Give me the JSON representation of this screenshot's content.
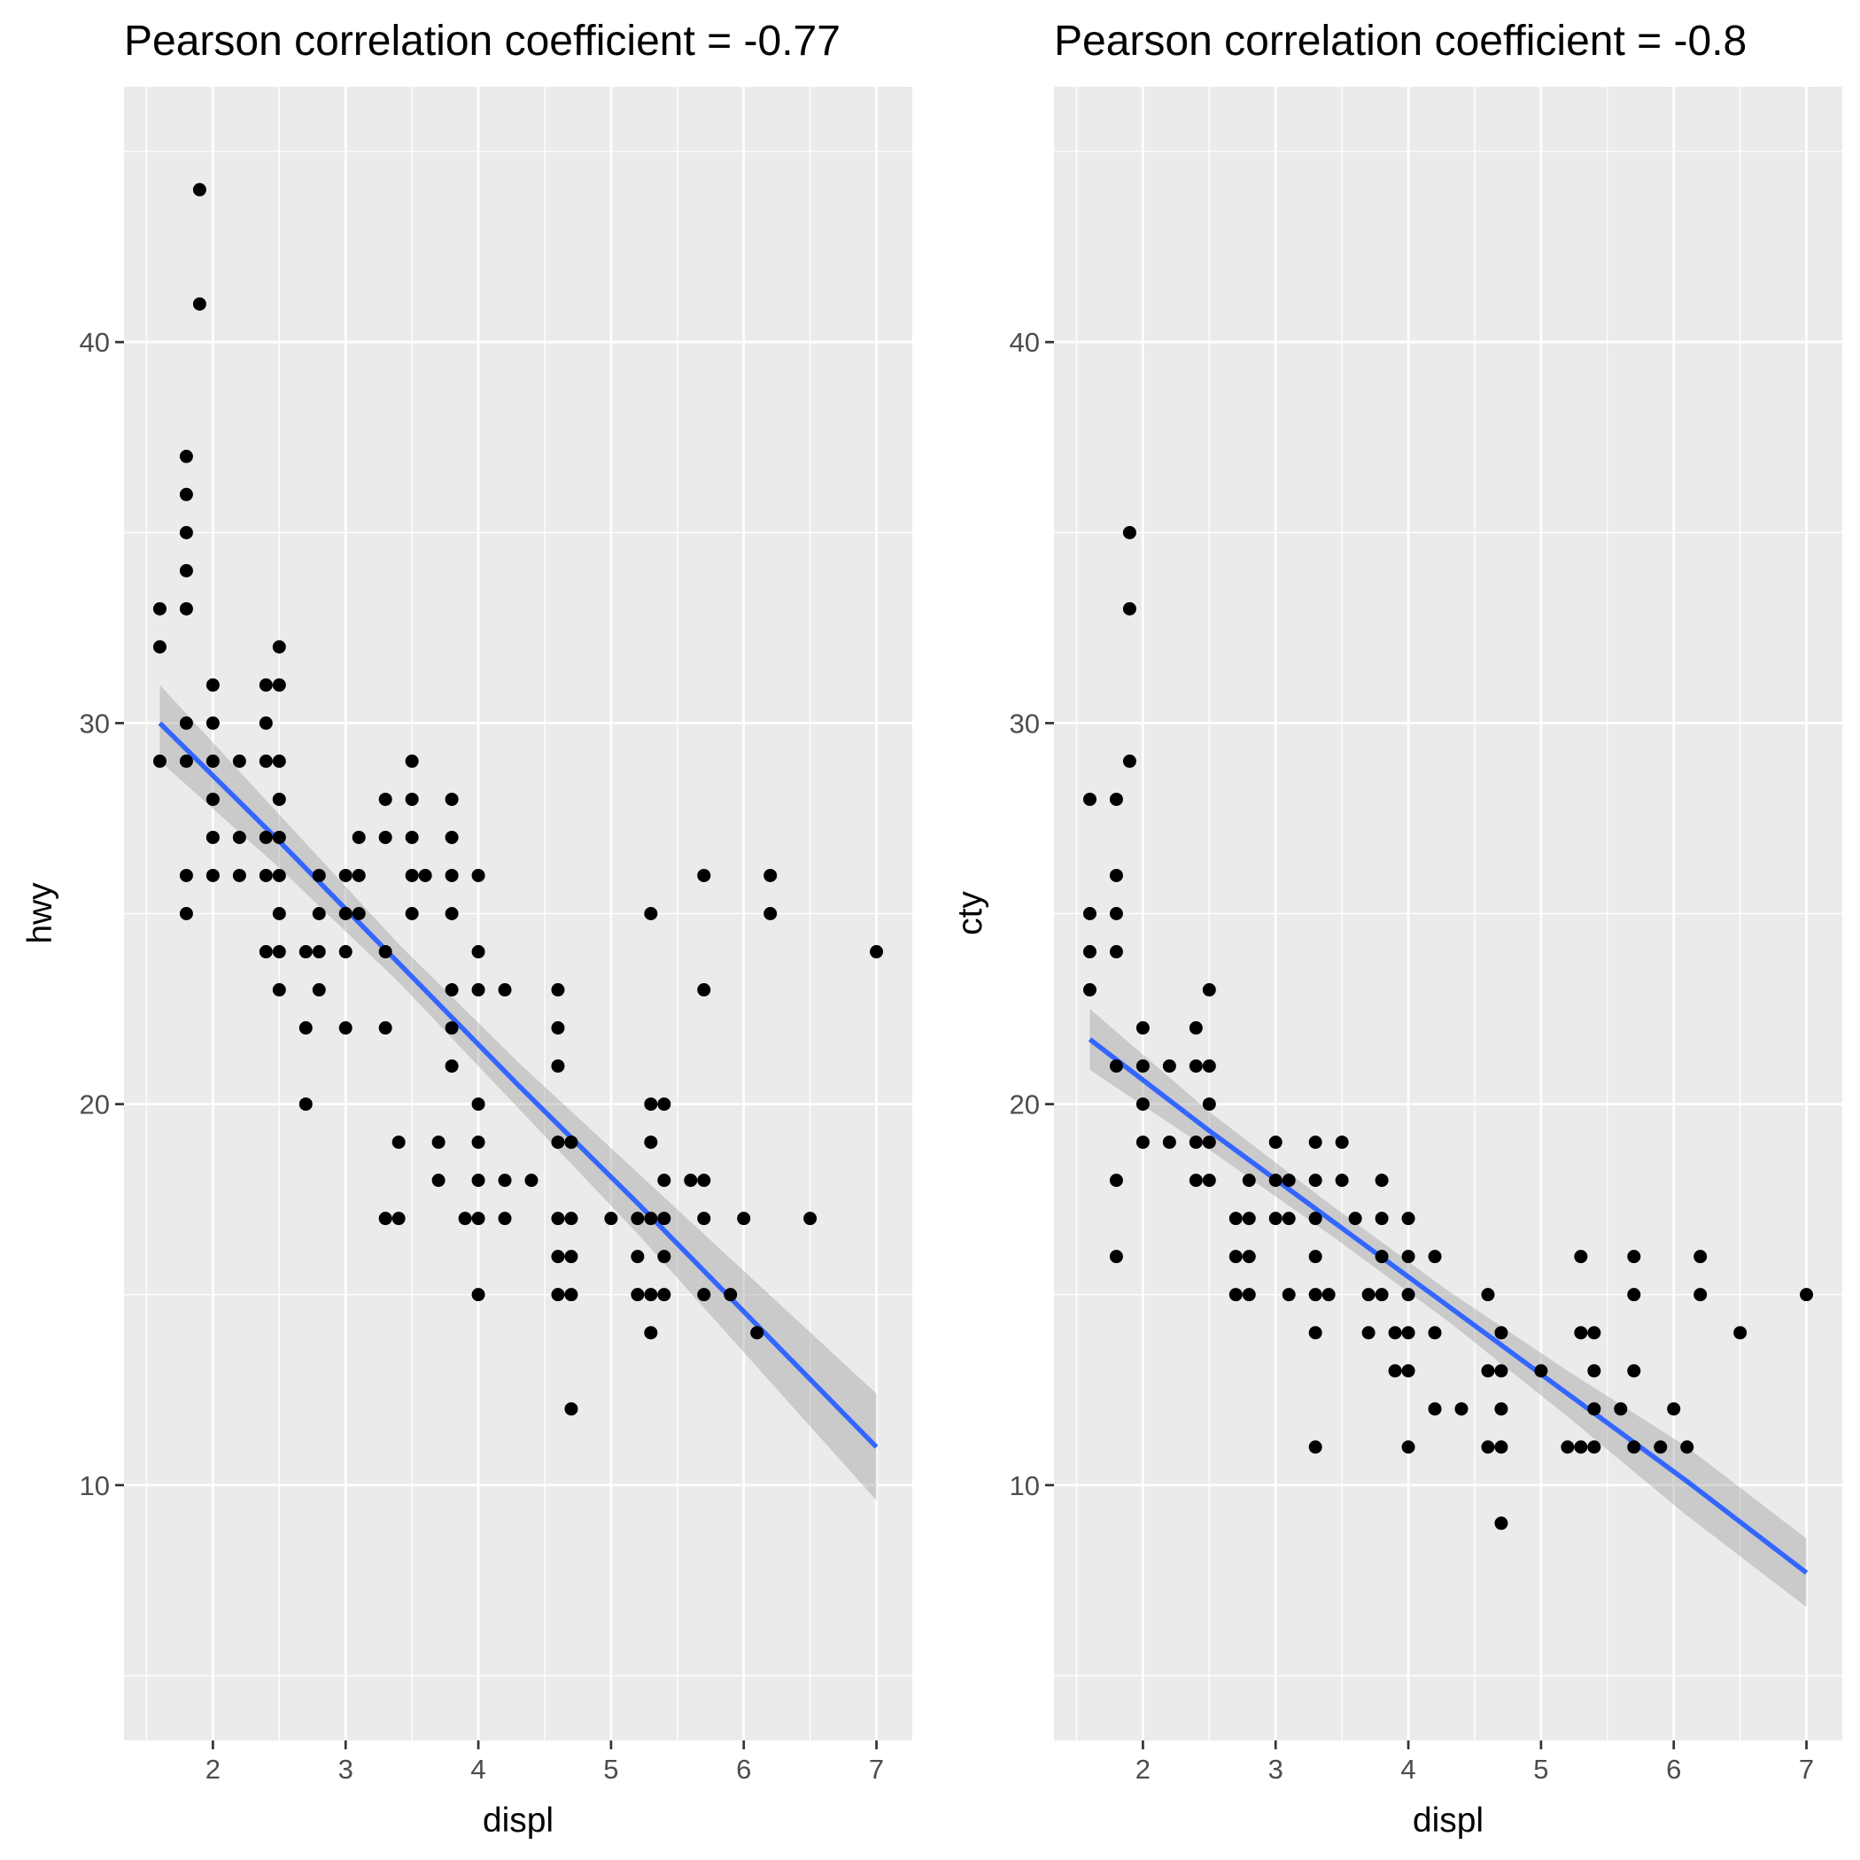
{
  "chart_data": [
    {
      "type": "scatter",
      "title": "Pearson correlation coefficient = -0.77",
      "xlabel": "displ",
      "ylabel": "hwy",
      "xlim": [
        1.33,
        7.27
      ],
      "ylim": [
        3.3,
        46.7
      ],
      "x_ticks": [
        2,
        3,
        4,
        5,
        6,
        7
      ],
      "y_ticks": [
        10,
        20,
        30,
        40
      ],
      "x_tick_labels": [
        "2",
        "3",
        "4",
        "5",
        "6",
        "7"
      ],
      "y_tick_labels": [
        "10",
        "20",
        "30",
        "40"
      ],
      "grid": true,
      "colors": {
        "points": "#000000",
        "fit_line": "#3366ff",
        "ribbon": "#999999",
        "panel": "#ebebeb"
      },
      "fit": {
        "x": [
          1.6,
          2.5,
          3.4,
          4.3,
          5.2,
          6.1,
          7.0
        ],
        "y": [
          30.0,
          26.9,
          23.7,
          20.5,
          17.4,
          14.2,
          11.0
        ],
        "lower": [
          29.0,
          26.2,
          23.2,
          19.9,
          16.6,
          13.1,
          9.6
        ],
        "upper": [
          31.0,
          27.6,
          24.2,
          21.1,
          18.2,
          15.3,
          12.4
        ]
      },
      "points": [
        [
          1.9,
          44
        ],
        [
          1.9,
          41
        ],
        [
          1.8,
          37
        ],
        [
          1.8,
          36
        ],
        [
          1.8,
          35
        ],
        [
          1.8,
          34
        ],
        [
          1.8,
          33
        ],
        [
          1.6,
          33
        ],
        [
          1.6,
          32
        ],
        [
          1.6,
          29
        ],
        [
          1.8,
          30
        ],
        [
          1.8,
          29
        ],
        [
          1.8,
          26
        ],
        [
          1.8,
          25
        ],
        [
          2.0,
          31
        ],
        [
          2.0,
          30
        ],
        [
          2.0,
          29
        ],
        [
          2.0,
          28
        ],
        [
          2.0,
          27
        ],
        [
          2.0,
          26
        ],
        [
          2.2,
          29
        ],
        [
          2.2,
          27
        ],
        [
          2.2,
          26
        ],
        [
          2.4,
          31
        ],
        [
          2.4,
          30
        ],
        [
          2.4,
          29
        ],
        [
          2.4,
          27
        ],
        [
          2.4,
          26
        ],
        [
          2.4,
          24
        ],
        [
          2.5,
          32
        ],
        [
          2.5,
          31
        ],
        [
          2.5,
          29
        ],
        [
          2.5,
          28
        ],
        [
          2.5,
          27
        ],
        [
          2.5,
          26
        ],
        [
          2.5,
          25
        ],
        [
          2.5,
          24
        ],
        [
          2.5,
          23
        ],
        [
          2.7,
          24
        ],
        [
          2.7,
          22
        ],
        [
          2.7,
          20
        ],
        [
          2.8,
          26
        ],
        [
          2.8,
          25
        ],
        [
          2.8,
          24
        ],
        [
          2.8,
          23
        ],
        [
          3.0,
          26
        ],
        [
          3.0,
          25
        ],
        [
          3.0,
          24
        ],
        [
          3.0,
          22
        ],
        [
          3.1,
          27
        ],
        [
          3.1,
          26
        ],
        [
          3.1,
          25
        ],
        [
          3.3,
          28
        ],
        [
          3.3,
          27
        ],
        [
          3.3,
          24
        ],
        [
          3.3,
          22
        ],
        [
          3.3,
          17
        ],
        [
          3.4,
          19
        ],
        [
          3.4,
          17
        ],
        [
          3.5,
          29
        ],
        [
          3.5,
          28
        ],
        [
          3.5,
          27
        ],
        [
          3.5,
          26
        ],
        [
          3.5,
          25
        ],
        [
          3.6,
          26
        ],
        [
          3.7,
          19
        ],
        [
          3.7,
          18
        ],
        [
          3.8,
          28
        ],
        [
          3.8,
          27
        ],
        [
          3.8,
          26
        ],
        [
          3.8,
          25
        ],
        [
          3.8,
          23
        ],
        [
          3.8,
          22
        ],
        [
          3.8,
          21
        ],
        [
          3.9,
          17
        ],
        [
          4.0,
          26
        ],
        [
          4.0,
          24
        ],
        [
          4.0,
          23
        ],
        [
          4.0,
          20
        ],
        [
          4.0,
          19
        ],
        [
          4.0,
          18
        ],
        [
          4.0,
          17
        ],
        [
          4.0,
          15
        ],
        [
          4.2,
          23
        ],
        [
          4.2,
          18
        ],
        [
          4.2,
          17
        ],
        [
          4.4,
          18
        ],
        [
          4.6,
          23
        ],
        [
          4.6,
          22
        ],
        [
          4.6,
          21
        ],
        [
          4.6,
          19
        ],
        [
          4.6,
          17
        ],
        [
          4.6,
          16
        ],
        [
          4.6,
          15
        ],
        [
          4.7,
          19
        ],
        [
          4.7,
          17
        ],
        [
          4.7,
          16
        ],
        [
          4.7,
          15
        ],
        [
          4.7,
          12
        ],
        [
          5.0,
          17
        ],
        [
          5.2,
          17
        ],
        [
          5.2,
          16
        ],
        [
          5.2,
          15
        ],
        [
          5.3,
          25
        ],
        [
          5.3,
          20
        ],
        [
          5.3,
          19
        ],
        [
          5.3,
          17
        ],
        [
          5.3,
          15
        ],
        [
          5.3,
          14
        ],
        [
          5.4,
          20
        ],
        [
          5.4,
          18
        ],
        [
          5.4,
          17
        ],
        [
          5.4,
          16
        ],
        [
          5.4,
          15
        ],
        [
          5.6,
          18
        ],
        [
          5.7,
          26
        ],
        [
          5.7,
          23
        ],
        [
          5.7,
          18
        ],
        [
          5.7,
          17
        ],
        [
          5.7,
          15
        ],
        [
          5.9,
          15
        ],
        [
          6.0,
          17
        ],
        [
          6.1,
          14
        ],
        [
          6.2,
          26
        ],
        [
          6.2,
          25
        ],
        [
          6.5,
          17
        ],
        [
          7.0,
          24
        ]
      ]
    },
    {
      "type": "scatter",
      "title": "Pearson correlation coefficient = -0.8",
      "xlabel": "displ",
      "ylabel": "cty",
      "xlim": [
        1.33,
        7.27
      ],
      "ylim": [
        3.3,
        46.7
      ],
      "x_ticks": [
        2,
        3,
        4,
        5,
        6,
        7
      ],
      "y_ticks": [
        10,
        20,
        30,
        40
      ],
      "x_tick_labels": [
        "2",
        "3",
        "4",
        "5",
        "6",
        "7"
      ],
      "y_tick_labels": [
        "10",
        "20",
        "30",
        "40"
      ],
      "grid": true,
      "colors": {
        "points": "#000000",
        "fit_line": "#3366ff",
        "ribbon": "#999999",
        "panel": "#ebebeb"
      },
      "fit": {
        "x": [
          1.6,
          2.5,
          3.4,
          4.3,
          5.2,
          6.1,
          7.0
        ],
        "y": [
          21.7,
          19.3,
          17.0,
          14.7,
          12.4,
          10.1,
          7.7
        ],
        "lower": [
          20.9,
          18.8,
          16.6,
          14.3,
          11.8,
          9.2,
          6.8
        ],
        "upper": [
          22.5,
          19.8,
          17.4,
          15.1,
          13.0,
          11.0,
          8.6
        ]
      },
      "points": [
        [
          1.9,
          35
        ],
        [
          1.9,
          33
        ],
        [
          1.9,
          29
        ],
        [
          1.6,
          28
        ],
        [
          1.6,
          25
        ],
        [
          1.6,
          24
        ],
        [
          1.6,
          23
        ],
        [
          1.8,
          28
        ],
        [
          1.8,
          26
        ],
        [
          1.8,
          25
        ],
        [
          1.8,
          24
        ],
        [
          1.8,
          21
        ],
        [
          1.8,
          18
        ],
        [
          1.8,
          16
        ],
        [
          2.0,
          22
        ],
        [
          2.0,
          21
        ],
        [
          2.0,
          20
        ],
        [
          2.0,
          19
        ],
        [
          2.2,
          21
        ],
        [
          2.2,
          19
        ],
        [
          2.4,
          22
        ],
        [
          2.4,
          21
        ],
        [
          2.4,
          19
        ],
        [
          2.4,
          18
        ],
        [
          2.5,
          23
        ],
        [
          2.5,
          21
        ],
        [
          2.5,
          20
        ],
        [
          2.5,
          19
        ],
        [
          2.5,
          18
        ],
        [
          2.7,
          17
        ],
        [
          2.7,
          16
        ],
        [
          2.7,
          15
        ],
        [
          2.8,
          18
        ],
        [
          2.8,
          17
        ],
        [
          2.8,
          16
        ],
        [
          2.8,
          15
        ],
        [
          3.0,
          19
        ],
        [
          3.0,
          18
        ],
        [
          3.0,
          17
        ],
        [
          3.1,
          18
        ],
        [
          3.1,
          17
        ],
        [
          3.1,
          15
        ],
        [
          3.3,
          19
        ],
        [
          3.3,
          18
        ],
        [
          3.3,
          17
        ],
        [
          3.3,
          16
        ],
        [
          3.3,
          15
        ],
        [
          3.3,
          14
        ],
        [
          3.3,
          11
        ],
        [
          3.4,
          15
        ],
        [
          3.5,
          19
        ],
        [
          3.5,
          18
        ],
        [
          3.6,
          17
        ],
        [
          3.7,
          15
        ],
        [
          3.7,
          14
        ],
        [
          3.8,
          18
        ],
        [
          3.8,
          17
        ],
        [
          3.8,
          16
        ],
        [
          3.8,
          15
        ],
        [
          3.9,
          14
        ],
        [
          3.9,
          13
        ],
        [
          4.0,
          17
        ],
        [
          4.0,
          16
        ],
        [
          4.0,
          15
        ],
        [
          4.0,
          14
        ],
        [
          4.0,
          13
        ],
        [
          4.0,
          11
        ],
        [
          4.2,
          16
        ],
        [
          4.2,
          14
        ],
        [
          4.2,
          12
        ],
        [
          4.4,
          12
        ],
        [
          4.6,
          15
        ],
        [
          4.6,
          13
        ],
        [
          4.6,
          11
        ],
        [
          4.7,
          14
        ],
        [
          4.7,
          13
        ],
        [
          4.7,
          12
        ],
        [
          4.7,
          11
        ],
        [
          4.7,
          9
        ],
        [
          5.0,
          13
        ],
        [
          5.2,
          11
        ],
        [
          5.3,
          16
        ],
        [
          5.3,
          14
        ],
        [
          5.3,
          11
        ],
        [
          5.4,
          14
        ],
        [
          5.4,
          13
        ],
        [
          5.4,
          12
        ],
        [
          5.4,
          11
        ],
        [
          5.6,
          12
        ],
        [
          5.7,
          16
        ],
        [
          5.7,
          15
        ],
        [
          5.7,
          13
        ],
        [
          5.7,
          11
        ],
        [
          5.9,
          11
        ],
        [
          6.0,
          12
        ],
        [
          6.1,
          11
        ],
        [
          6.2,
          16
        ],
        [
          6.2,
          15
        ],
        [
          6.5,
          14
        ],
        [
          7.0,
          15
        ]
      ]
    }
  ]
}
